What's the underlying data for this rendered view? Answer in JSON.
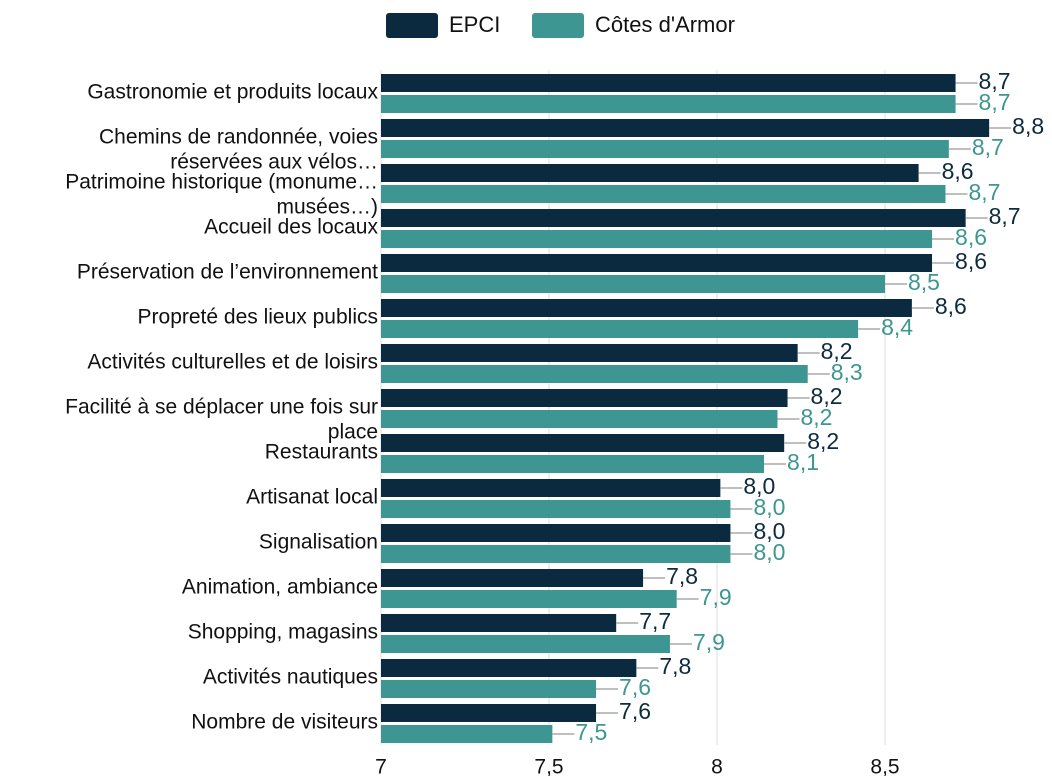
{
  "chart_data": {
    "type": "barh",
    "categories": [
      "Gastronomie et produits locaux",
      "Chemins de randonnée, voies\nréservées aux vélos…",
      "Patrimoine historique (monume…\nmusées…)",
      "Accueil des locaux",
      "Préservation de l’environnement",
      "Propreté des lieux publics",
      "Activités culturelles et de loisirs",
      "Facilité à se déplacer une fois sur\nplace",
      "Restaurants",
      "Artisanat local",
      "Signalisation",
      "Animation, ambiance",
      "Shopping, magasins",
      "Activités nautiques",
      "Nombre de visiteurs"
    ],
    "series": [
      {
        "name": "EPCI",
        "color": "#0b2a3f",
        "label_color": "#0d2b3e",
        "values": [
          8.71,
          8.81,
          8.6,
          8.74,
          8.64,
          8.58,
          8.24,
          8.21,
          8.2,
          8.01,
          8.04,
          7.78,
          7.7,
          7.76,
          7.64
        ],
        "value_labels": [
          "8,7",
          "8,8",
          "8,6",
          "8,7",
          "8,6",
          "8,6",
          "8,2",
          "8,2",
          "8,2",
          "8,0",
          "8,0",
          "7,8",
          "7,7",
          "7,8",
          "7,6"
        ]
      },
      {
        "name": "Côtes d'Armor",
        "color": "#3e9693",
        "label_color": "#3d9691",
        "values": [
          8.71,
          8.69,
          8.68,
          8.64,
          8.5,
          8.42,
          8.27,
          8.18,
          8.14,
          8.04,
          8.04,
          7.88,
          7.86,
          7.64,
          7.51
        ],
        "value_labels": [
          "8,7",
          "8,7",
          "8,7",
          "8,6",
          "8,5",
          "8,4",
          "8,3",
          "8,2",
          "8,1",
          "8,0",
          "8,0",
          "7,9",
          "7,9",
          "7,6",
          "7,5"
        ]
      }
    ],
    "xlim": [
      7,
      9
    ],
    "xticks": [
      7,
      {
        "value": 7.5,
        "label": "7,5"
      },
      8,
      {
        "value": 8.5,
        "label": "8,5"
      }
    ],
    "grid": true,
    "legend": "top"
  }
}
